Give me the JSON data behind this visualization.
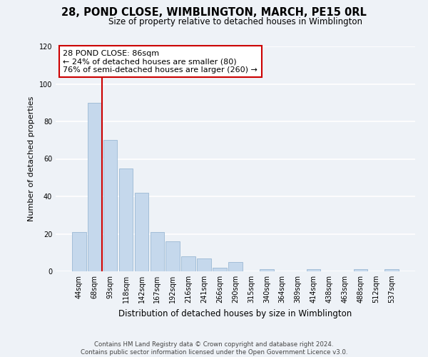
{
  "title": "28, POND CLOSE, WIMBLINGTON, MARCH, PE15 0RL",
  "subtitle": "Size of property relative to detached houses in Wimblington",
  "xlabel": "Distribution of detached houses by size in Wimblington",
  "ylabel": "Number of detached properties",
  "bar_labels": [
    "44sqm",
    "68sqm",
    "93sqm",
    "118sqm",
    "142sqm",
    "167sqm",
    "192sqm",
    "216sqm",
    "241sqm",
    "266sqm",
    "290sqm",
    "315sqm",
    "340sqm",
    "364sqm",
    "389sqm",
    "414sqm",
    "438sqm",
    "463sqm",
    "488sqm",
    "512sqm",
    "537sqm"
  ],
  "bar_values": [
    21,
    90,
    70,
    55,
    42,
    21,
    16,
    8,
    7,
    2,
    5,
    0,
    1,
    0,
    0,
    1,
    0,
    0,
    1,
    0,
    1
  ],
  "bar_color": "#c5d8ec",
  "bar_edge_color": "#9ab8d4",
  "vline_color": "#cc0000",
  "annotation_title": "28 POND CLOSE: 86sqm",
  "annotation_line1": "← 24% of detached houses are smaller (80)",
  "annotation_line2": "76% of semi-detached houses are larger (260) →",
  "annotation_box_color": "#ffffff",
  "annotation_box_edge": "#cc0000",
  "ylim": [
    0,
    120
  ],
  "yticks": [
    0,
    20,
    40,
    60,
    80,
    100,
    120
  ],
  "footer1": "Contains HM Land Registry data © Crown copyright and database right 2024.",
  "footer2": "Contains public sector information licensed under the Open Government Licence v3.0.",
  "bg_color": "#eef2f7",
  "grid_color": "#ffffff",
  "title_fontsize": 10.5,
  "subtitle_fontsize": 8.5
}
